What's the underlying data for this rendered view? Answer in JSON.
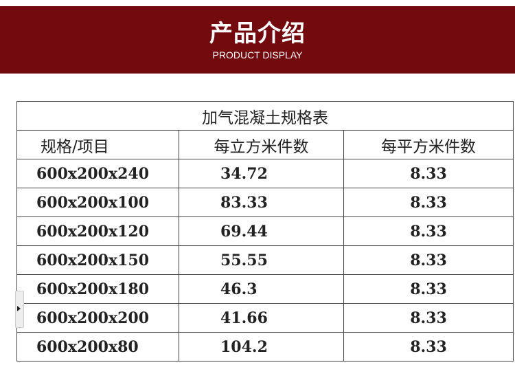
{
  "banner": {
    "title": "产品介绍",
    "subtitle": "PRODUCT DISPLAY"
  },
  "table": {
    "title": "加气混凝土规格表",
    "headers": [
      "规格/项目",
      "每立方米件数",
      "每平方米件数"
    ],
    "rows": [
      [
        "600x200x240",
        "34.72",
        "8.33"
      ],
      [
        "600x200x100",
        "83.33",
        "8.33"
      ],
      [
        "600x200x120",
        "69.44",
        "8.33"
      ],
      [
        "600x200x150",
        "55.55",
        "8.33"
      ],
      [
        "600x200x180",
        "46.3",
        "8.33"
      ],
      [
        "600x200x200",
        "41.66",
        "8.33"
      ],
      [
        "600x200x80",
        "104.2",
        "8.33"
      ]
    ]
  },
  "colors": {
    "banner": "#730a0e"
  }
}
